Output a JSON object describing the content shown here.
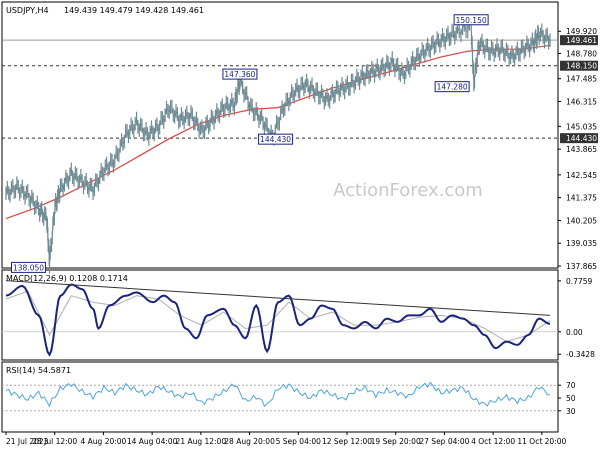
{
  "chart_data": [
    {
      "type": "line",
      "symbol_header": "USDJPY,H4",
      "ohlc_header": "149.439 149.479 149.428 149.461",
      "ylim": [
        137.865,
        150.6
      ],
      "y_ticks": [
        137.865,
        139.035,
        140.205,
        141.375,
        142.545,
        143.865,
        145.035,
        146.315,
        147.485,
        148.78,
        149.92
      ],
      "horizontal_levels": [
        {
          "value": 149.461,
          "label": "149.461",
          "style": "solid-gray",
          "badge": "dark"
        },
        {
          "value": 148.15,
          "label": "148.150",
          "style": "dashed",
          "badge": "dark"
        },
        {
          "value": 144.43,
          "label": "144.430",
          "style": "dashed",
          "badge": "dark"
        }
      ],
      "annotations": [
        {
          "label": "150.150",
          "x": 0.855,
          "value": 150.15
        },
        {
          "label": "147.360",
          "x": 0.43,
          "value": 147.36
        },
        {
          "label": "144.430",
          "x": 0.49,
          "value": 144.43
        },
        {
          "label": "147.280",
          "x": 0.855,
          "value": 147.28
        },
        {
          "label": "138.050",
          "x": 0.08,
          "value": 138.05
        }
      ],
      "price_series": [
        [
          0.0,
          141.6
        ],
        [
          0.02,
          141.9
        ],
        [
          0.04,
          141.5
        ],
        [
          0.06,
          140.8
        ],
        [
          0.075,
          140.3
        ],
        [
          0.08,
          138.05
        ],
        [
          0.09,
          140.9
        ],
        [
          0.1,
          141.8
        ],
        [
          0.12,
          142.6
        ],
        [
          0.14,
          142.2
        ],
        [
          0.16,
          141.8
        ],
        [
          0.18,
          142.8
        ],
        [
          0.2,
          143.3
        ],
        [
          0.22,
          144.6
        ],
        [
          0.24,
          145.2
        ],
        [
          0.26,
          144.6
        ],
        [
          0.28,
          145.0
        ],
        [
          0.3,
          146.0
        ],
        [
          0.32,
          145.4
        ],
        [
          0.34,
          145.6
        ],
        [
          0.36,
          144.8
        ],
        [
          0.38,
          145.4
        ],
        [
          0.4,
          146.0
        ],
        [
          0.42,
          146.2
        ],
        [
          0.43,
          147.36
        ],
        [
          0.45,
          146.0
        ],
        [
          0.47,
          145.4
        ],
        [
          0.49,
          144.43
        ],
        [
          0.51,
          146.0
        ],
        [
          0.53,
          146.8
        ],
        [
          0.55,
          147.2
        ],
        [
          0.57,
          146.8
        ],
        [
          0.59,
          146.4
        ],
        [
          0.61,
          146.9
        ],
        [
          0.63,
          147.1
        ],
        [
          0.65,
          147.5
        ],
        [
          0.67,
          147.8
        ],
        [
          0.69,
          148.0
        ],
        [
          0.71,
          148.3
        ],
        [
          0.73,
          147.7
        ],
        [
          0.75,
          148.4
        ],
        [
          0.77,
          148.9
        ],
        [
          0.79,
          149.3
        ],
        [
          0.81,
          149.6
        ],
        [
          0.83,
          149.9
        ],
        [
          0.855,
          150.15
        ],
        [
          0.86,
          147.28
        ],
        [
          0.87,
          149.3
        ],
        [
          0.89,
          148.9
        ],
        [
          0.91,
          149.0
        ],
        [
          0.93,
          148.6
        ],
        [
          0.95,
          149.0
        ],
        [
          0.97,
          149.3
        ],
        [
          0.98,
          149.8
        ],
        [
          1.0,
          149.46
        ]
      ],
      "ma_series": [
        [
          0.0,
          140.3
        ],
        [
          0.05,
          140.8
        ],
        [
          0.1,
          141.4
        ],
        [
          0.15,
          142.1
        ],
        [
          0.2,
          142.8
        ],
        [
          0.25,
          143.6
        ],
        [
          0.3,
          144.4
        ],
        [
          0.35,
          145.1
        ],
        [
          0.4,
          145.6
        ],
        [
          0.45,
          145.9
        ],
        [
          0.5,
          146.0
        ],
        [
          0.55,
          146.5
        ],
        [
          0.6,
          147.0
        ],
        [
          0.65,
          147.4
        ],
        [
          0.7,
          147.8
        ],
        [
          0.75,
          148.2
        ],
        [
          0.8,
          148.6
        ],
        [
          0.85,
          148.9
        ],
        [
          0.9,
          149.0
        ],
        [
          0.95,
          149.0
        ],
        [
          1.0,
          149.2
        ]
      ],
      "series_colors": {
        "price": "#6e8a93",
        "ma": "#e04040",
        "levels": "#333333"
      }
    },
    {
      "type": "line",
      "title": "MACD(12,26,9) 0.1208 0.1714",
      "ylim": [
        -0.4,
        0.85
      ],
      "y_ticks": [
        0.7759,
        0.0,
        -0.3428
      ],
      "zero_label": "0.00",
      "macd_series": [
        [
          0.0,
          0.55
        ],
        [
          0.03,
          0.7
        ],
        [
          0.06,
          0.25
        ],
        [
          0.08,
          -0.35
        ],
        [
          0.1,
          0.55
        ],
        [
          0.12,
          0.72
        ],
        [
          0.14,
          0.65
        ],
        [
          0.16,
          0.35
        ],
        [
          0.17,
          0.05
        ],
        [
          0.19,
          0.4
        ],
        [
          0.22,
          0.55
        ],
        [
          0.24,
          0.6
        ],
        [
          0.27,
          0.45
        ],
        [
          0.29,
          0.55
        ],
        [
          0.31,
          0.45
        ],
        [
          0.33,
          0.05
        ],
        [
          0.35,
          -0.1
        ],
        [
          0.37,
          0.25
        ],
        [
          0.4,
          0.35
        ],
        [
          0.42,
          0.1
        ],
        [
          0.44,
          -0.1
        ],
        [
          0.46,
          0.4
        ],
        [
          0.48,
          -0.3
        ],
        [
          0.5,
          0.45
        ],
        [
          0.52,
          0.55
        ],
        [
          0.54,
          0.1
        ],
        [
          0.56,
          0.2
        ],
        [
          0.58,
          0.4
        ],
        [
          0.6,
          0.35
        ],
        [
          0.62,
          0.1
        ],
        [
          0.64,
          0.05
        ],
        [
          0.66,
          0.15
        ],
        [
          0.68,
          0.05
        ],
        [
          0.7,
          0.2
        ],
        [
          0.72,
          0.15
        ],
        [
          0.74,
          0.25
        ],
        [
          0.76,
          0.25
        ],
        [
          0.78,
          0.35
        ],
        [
          0.8,
          0.15
        ],
        [
          0.82,
          0.25
        ],
        [
          0.84,
          0.2
        ],
        [
          0.86,
          0.1
        ],
        [
          0.88,
          -0.05
        ],
        [
          0.9,
          -0.25
        ],
        [
          0.92,
          -0.15
        ],
        [
          0.94,
          -0.2
        ],
        [
          0.96,
          -0.05
        ],
        [
          0.98,
          0.2
        ],
        [
          1.0,
          0.12
        ]
      ],
      "signal_series": [
        [
          0.0,
          0.5
        ],
        [
          0.04,
          0.62
        ],
        [
          0.08,
          -0.05
        ],
        [
          0.12,
          0.55
        ],
        [
          0.16,
          0.45
        ],
        [
          0.2,
          0.4
        ],
        [
          0.24,
          0.55
        ],
        [
          0.28,
          0.5
        ],
        [
          0.32,
          0.25
        ],
        [
          0.36,
          0.1
        ],
        [
          0.4,
          0.3
        ],
        [
          0.44,
          0.05
        ],
        [
          0.48,
          0.1
        ],
        [
          0.52,
          0.45
        ],
        [
          0.56,
          0.2
        ],
        [
          0.6,
          0.3
        ],
        [
          0.64,
          0.1
        ],
        [
          0.68,
          0.1
        ],
        [
          0.72,
          0.15
        ],
        [
          0.76,
          0.22
        ],
        [
          0.8,
          0.25
        ],
        [
          0.84,
          0.2
        ],
        [
          0.88,
          0.05
        ],
        [
          0.92,
          -0.15
        ],
        [
          0.96,
          -0.05
        ],
        [
          1.0,
          0.17
        ]
      ],
      "trendline": [
        [
          0.0,
          0.78
        ],
        [
          1.0,
          0.25
        ]
      ],
      "series_colors": {
        "macd": "#1a237e",
        "signal": "#b0b0b0",
        "trend": "#333333"
      }
    },
    {
      "type": "line",
      "title": "RSI(14) 54.5871",
      "ylim": [
        0,
        100
      ],
      "y_ticks": [
        70,
        50,
        30
      ],
      "rsi_series": [
        [
          0.0,
          62
        ],
        [
          0.02,
          55
        ],
        [
          0.04,
          48
        ],
        [
          0.06,
          58
        ],
        [
          0.08,
          40
        ],
        [
          0.1,
          65
        ],
        [
          0.12,
          72
        ],
        [
          0.14,
          60
        ],
        [
          0.16,
          52
        ],
        [
          0.18,
          66
        ],
        [
          0.2,
          58
        ],
        [
          0.22,
          70
        ],
        [
          0.24,
          62
        ],
        [
          0.26,
          55
        ],
        [
          0.28,
          68
        ],
        [
          0.3,
          60
        ],
        [
          0.32,
          52
        ],
        [
          0.34,
          58
        ],
        [
          0.36,
          42
        ],
        [
          0.38,
          50
        ],
        [
          0.4,
          60
        ],
        [
          0.42,
          72
        ],
        [
          0.44,
          45
        ],
        [
          0.46,
          52
        ],
        [
          0.48,
          38
        ],
        [
          0.5,
          65
        ],
        [
          0.52,
          70
        ],
        [
          0.54,
          58
        ],
        [
          0.56,
          50
        ],
        [
          0.58,
          62
        ],
        [
          0.6,
          55
        ],
        [
          0.62,
          48
        ],
        [
          0.64,
          60
        ],
        [
          0.66,
          66
        ],
        [
          0.68,
          55
        ],
        [
          0.7,
          62
        ],
        [
          0.72,
          58
        ],
        [
          0.74,
          52
        ],
        [
          0.76,
          68
        ],
        [
          0.78,
          72
        ],
        [
          0.8,
          58
        ],
        [
          0.82,
          62
        ],
        [
          0.84,
          66
        ],
        [
          0.86,
          48
        ],
        [
          0.88,
          40
        ],
        [
          0.9,
          46
        ],
        [
          0.92,
          52
        ],
        [
          0.94,
          45
        ],
        [
          0.96,
          50
        ],
        [
          0.98,
          68
        ],
        [
          1.0,
          55
        ]
      ],
      "series_colors": {
        "rsi": "#4fa3e0"
      }
    }
  ],
  "x_labels": [
    "21 Jul 2023",
    "28 Jul 12:00",
    "4 Aug 20:00",
    "14 Aug 04:00",
    "21 Aug 12:00",
    "28 Aug 20:00",
    "5 Sep 04:00",
    "12 Sep 12:00",
    "19 Sep 20:00",
    "27 Sep 04:00",
    "4 Oct 12:00",
    "11 Oct 20:00"
  ],
  "watermark": "ActionForex.com"
}
